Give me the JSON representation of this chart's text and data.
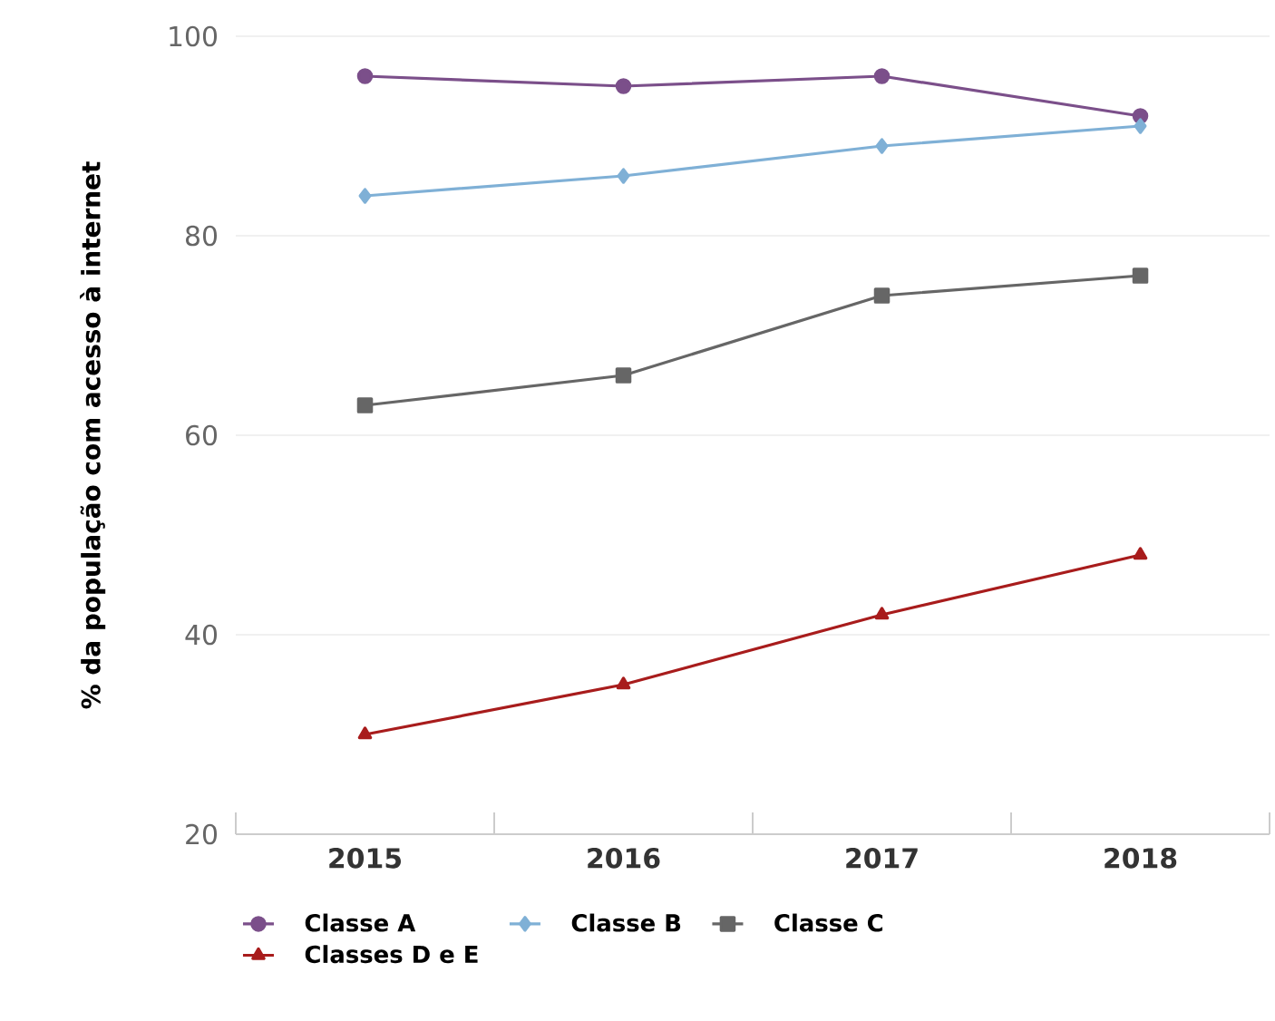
{
  "chart_data": {
    "type": "line",
    "ylabel": "% da população com acesso à internet",
    "categories": [
      "2015",
      "2016",
      "2017",
      "2018"
    ],
    "series": [
      {
        "name": "Classe A",
        "color": "#7b4f8a",
        "values": [
          96,
          95,
          96,
          92
        ],
        "marker": "circle"
      },
      {
        "name": "Classe B",
        "color": "#7fb0d6",
        "values": [
          84,
          86,
          89,
          91
        ],
        "marker": "diamond"
      },
      {
        "name": "Classe C",
        "color": "#666666",
        "values": [
          63,
          66,
          74,
          76
        ],
        "marker": "square"
      },
      {
        "name": "Classes D e E",
        "color": "#a81c1c",
        "values": [
          30,
          35,
          42,
          48
        ],
        "marker": "triangle"
      }
    ],
    "ylim": [
      20,
      100
    ],
    "yticks": [
      20,
      40,
      60,
      80,
      100
    ],
    "grid": "y",
    "legend": "bottom",
    "line_style": "solid"
  }
}
